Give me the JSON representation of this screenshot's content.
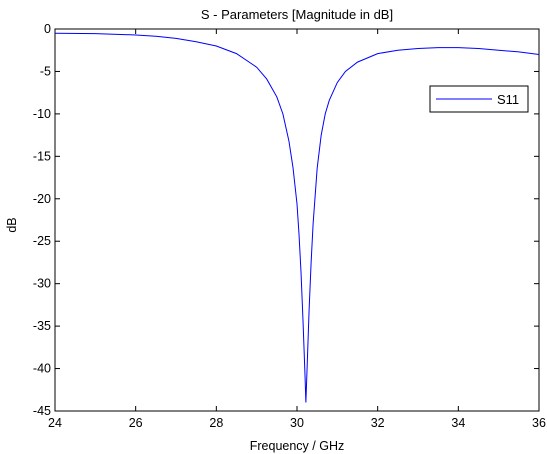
{
  "chart_data": {
    "type": "line",
    "title": "S - Parameters [Magnitude in dB]",
    "xlabel": "Frequency / GHz",
    "ylabel": "dB",
    "xlim": [
      24,
      36
    ],
    "ylim": [
      -45,
      0
    ],
    "xticks": [
      24,
      26,
      28,
      30,
      32,
      34,
      36
    ],
    "yticks": [
      0,
      -5,
      -10,
      -15,
      -20,
      -25,
      -30,
      -35,
      -40,
      -45
    ],
    "grid": false,
    "legend_position": "top-right",
    "series": [
      {
        "name": "S11",
        "color": "#0000ff",
        "x": [
          24.0,
          25.0,
          26.0,
          26.5,
          27.0,
          27.5,
          28.0,
          28.5,
          29.0,
          29.25,
          29.5,
          29.65,
          29.8,
          29.9,
          30.0,
          30.05,
          30.1,
          30.15,
          30.2,
          30.22,
          30.25,
          30.3,
          30.35,
          30.4,
          30.5,
          30.6,
          30.7,
          30.8,
          31.0,
          31.2,
          31.5,
          32.0,
          32.5,
          33.0,
          33.5,
          34.0,
          34.5,
          35.0,
          35.5,
          36.0
        ],
        "y": [
          -0.5,
          -0.55,
          -0.7,
          -0.85,
          -1.1,
          -1.5,
          -2.0,
          -2.9,
          -4.5,
          -5.9,
          -8.0,
          -10.0,
          -13.2,
          -16.3,
          -20.6,
          -24.2,
          -28.7,
          -34.5,
          -41.0,
          -44.0,
          -40.0,
          -33.1,
          -27.5,
          -22.9,
          -16.4,
          -12.5,
          -10.0,
          -8.4,
          -6.3,
          -5.0,
          -3.9,
          -2.9,
          -2.5,
          -2.3,
          -2.2,
          -2.2,
          -2.3,
          -2.5,
          -2.7,
          -3.0
        ]
      }
    ]
  }
}
